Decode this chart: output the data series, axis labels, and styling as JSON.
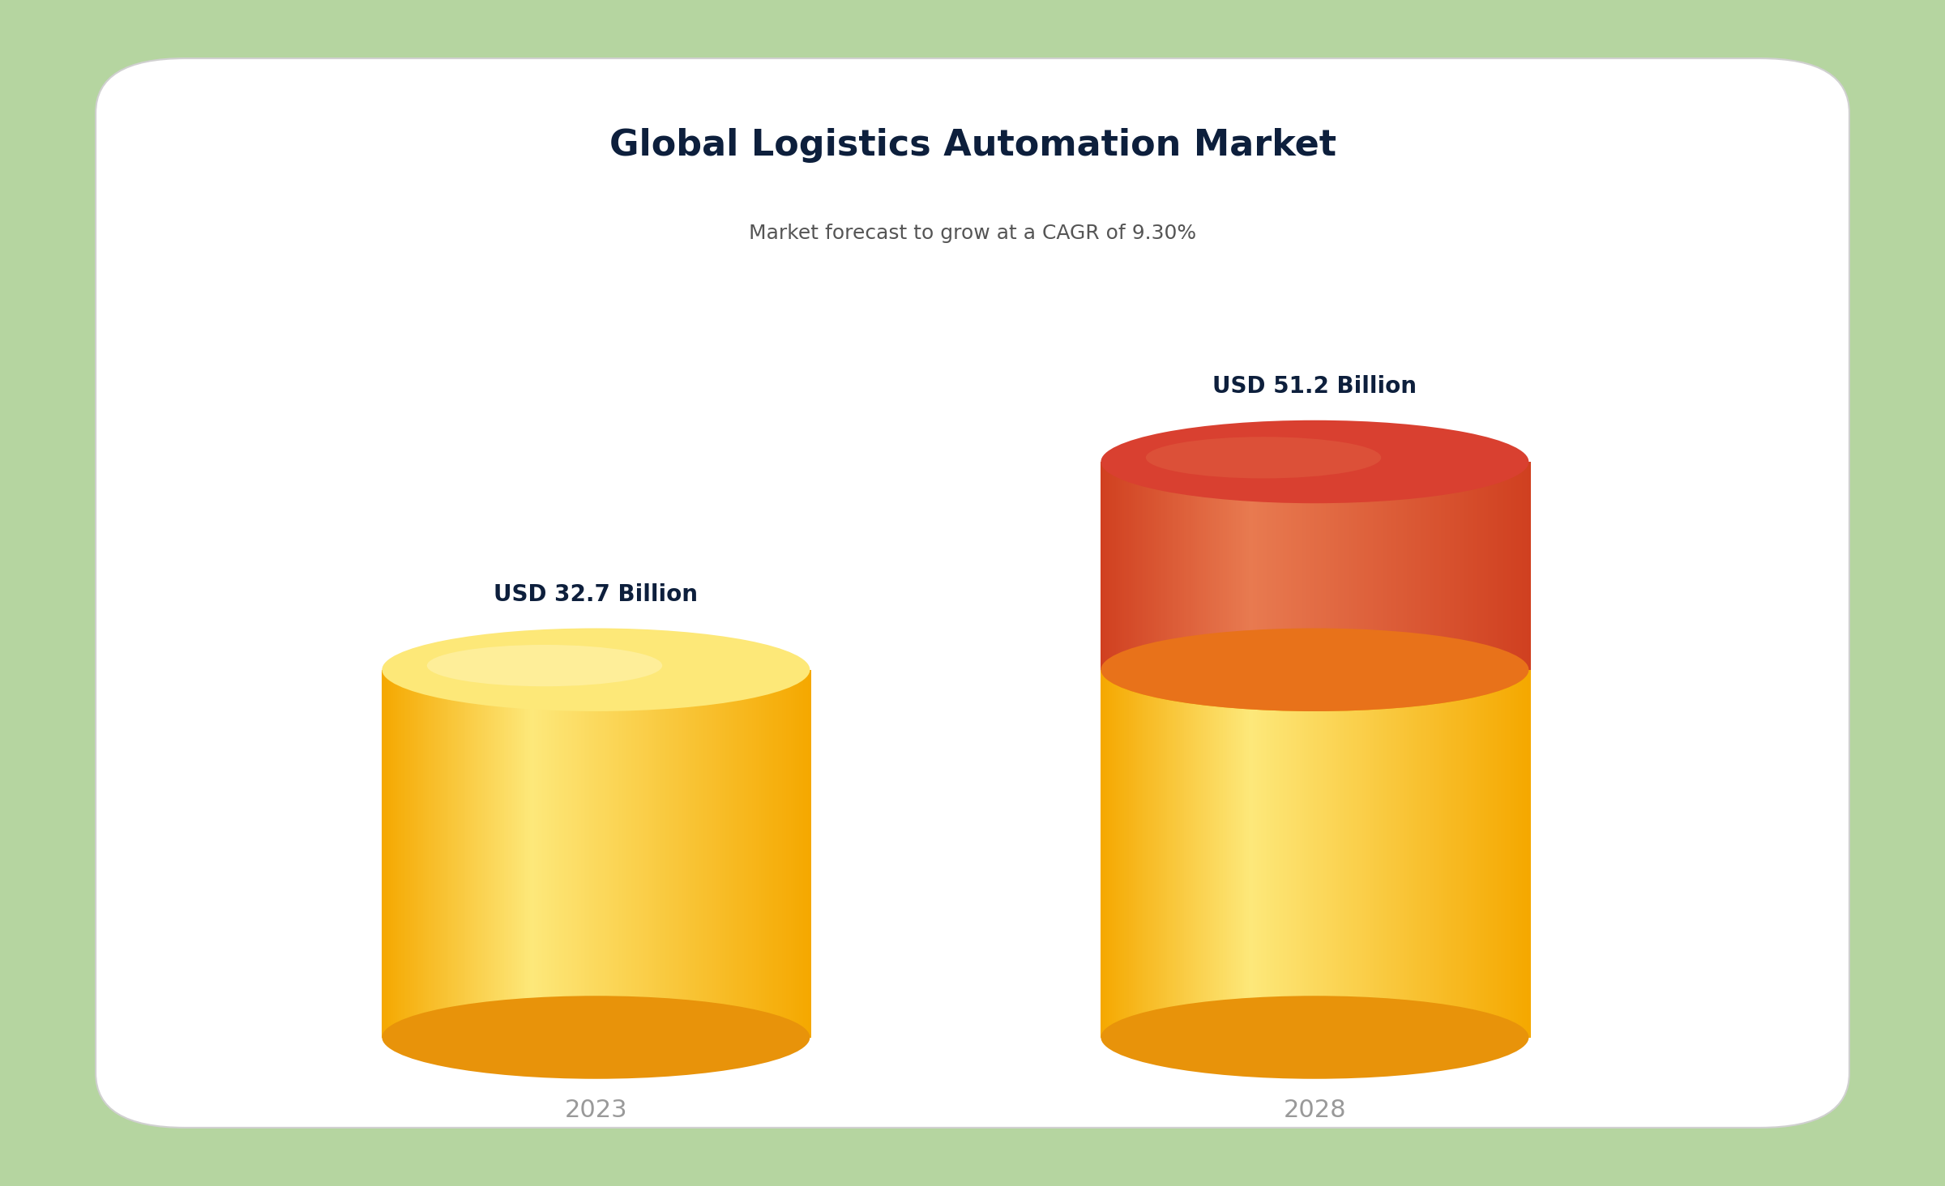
{
  "title": "Global Logistics Automation Market",
  "subtitle": "Market forecast to grow at a CAGR of 9.30%",
  "bar2023_label": "USD 32.7 Billion",
  "bar2028_label": "USD 51.2 Billion",
  "year2023": "2023",
  "year2028": "2028",
  "value2023": 32.7,
  "value2028": 51.2,
  "bg_outer": "#b5d5a0",
  "bg_card": "#ffffff",
  "title_color": "#0d1f3c",
  "subtitle_color": "#555555",
  "year_color": "#999999",
  "label_color": "#0d1f3c",
  "cyl_yellow_left": "#f0a020",
  "cyl_yellow_center": "#fde87a",
  "cyl_yellow_right": "#f5a800",
  "cyl_yellow_top": "#fde878",
  "cyl_yellow_bottom": "#e8930a",
  "cyl_red_left": "#d04020",
  "cyl_red_center": "#e87a50",
  "cyl_red_right": "#d04020",
  "cyl_red_top": "#d94030",
  "cyl_red_bottom": "#c83020",
  "title_fontsize": 32,
  "subtitle_fontsize": 18,
  "label_fontsize": 20,
  "year_fontsize": 22
}
